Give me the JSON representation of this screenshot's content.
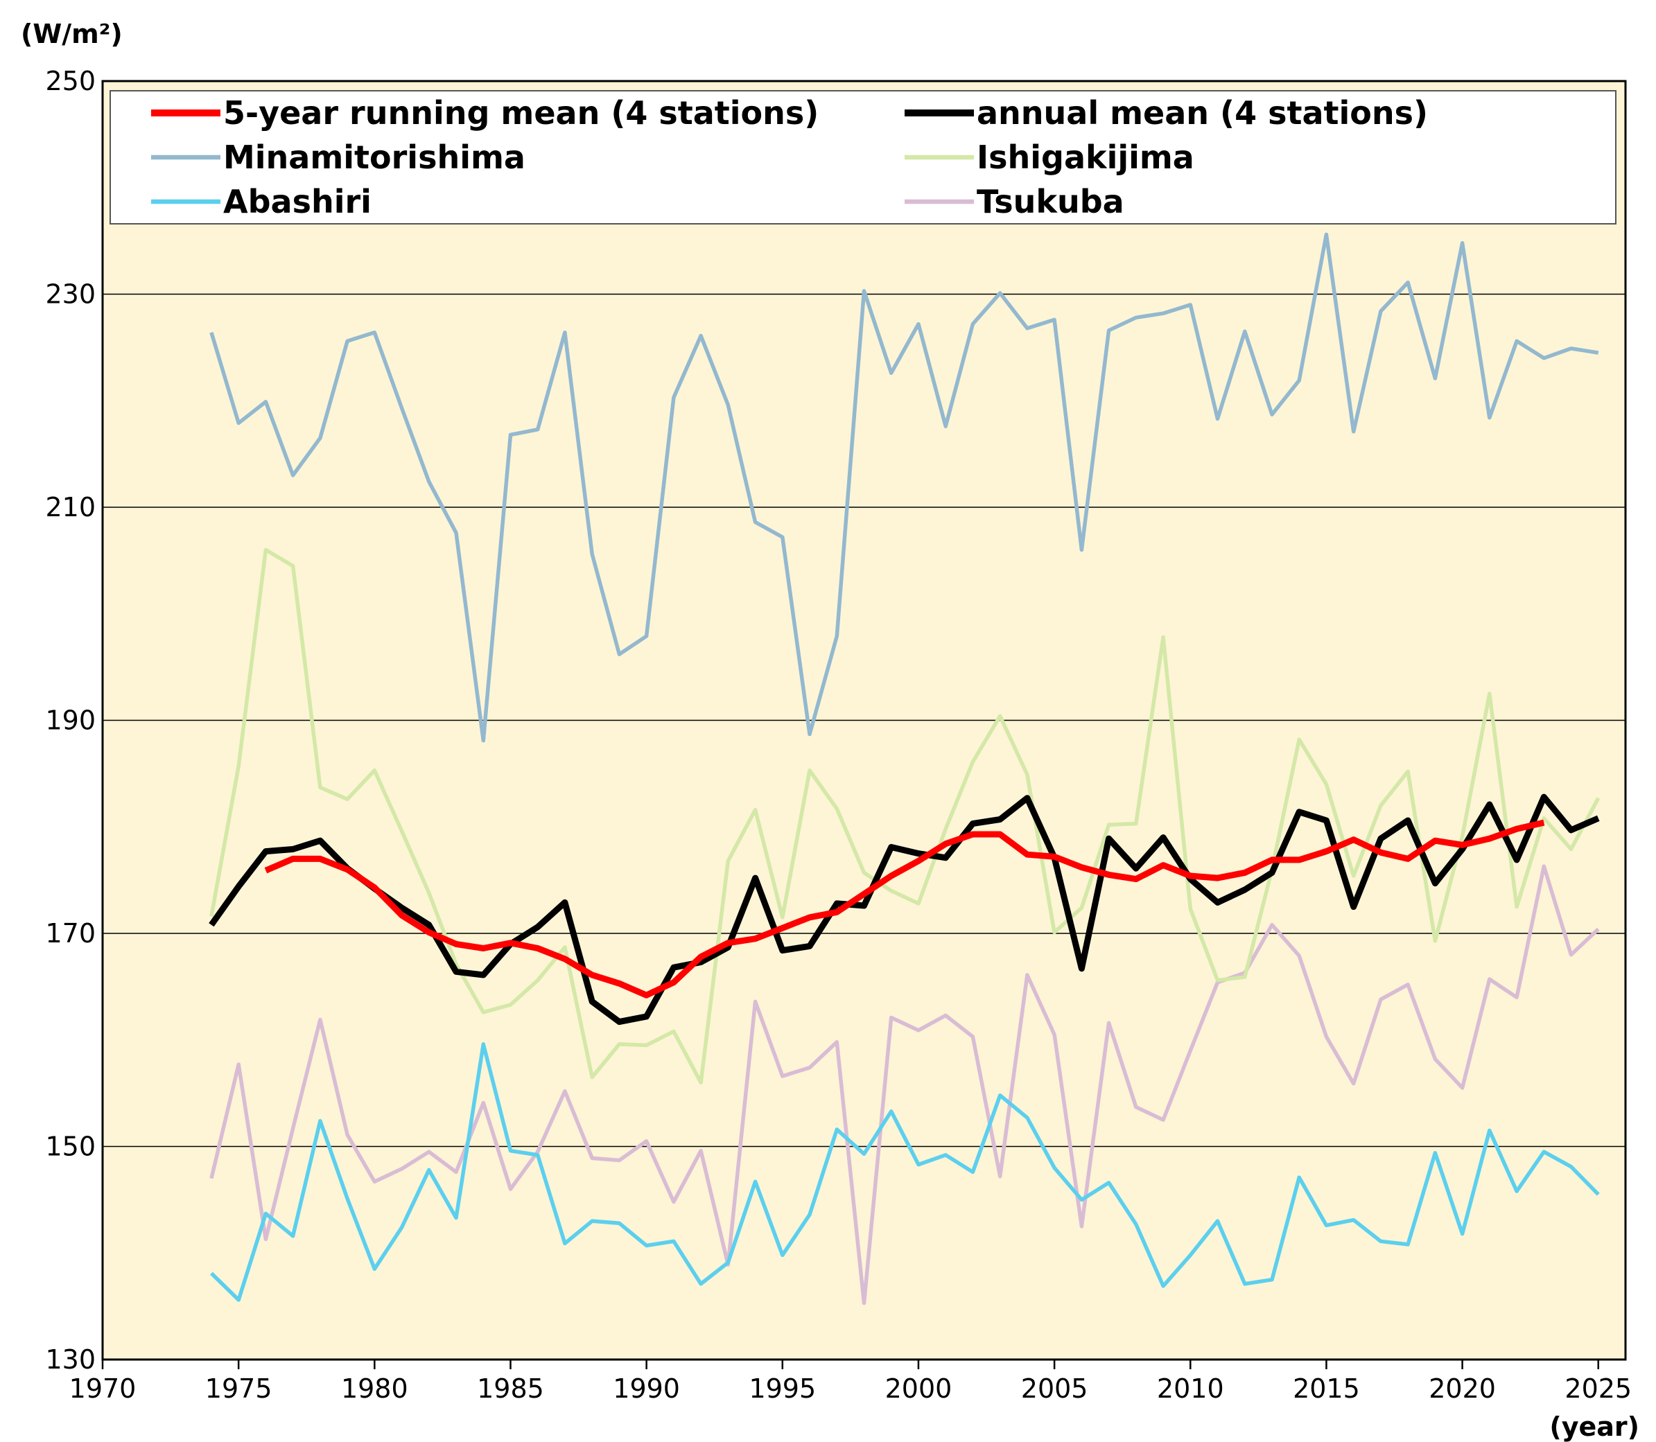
{
  "chart_data": {
    "type": "line",
    "y_label": "(W/m²)",
    "x_label": "(year)",
    "x": [
      1974,
      1975,
      1976,
      1977,
      1978,
      1979,
      1980,
      1981,
      1982,
      1983,
      1984,
      1985,
      1986,
      1987,
      1988,
      1989,
      1990,
      1991,
      1992,
      1993,
      1994,
      1995,
      1996,
      1997,
      1998,
      1999,
      2000,
      2001,
      2002,
      2003,
      2004,
      2005,
      2006,
      2007,
      2008,
      2009,
      2010,
      2011,
      2012,
      2013,
      2014,
      2015,
      2016,
      2017,
      2018,
      2019,
      2020,
      2021,
      2022,
      2023,
      2024,
      2025
    ],
    "xlim": [
      1970,
      2026
    ],
    "xticks": [
      1970,
      1975,
      1980,
      1985,
      1990,
      1995,
      2000,
      2005,
      2010,
      2015,
      2020,
      2025
    ],
    "ylim": [
      130,
      250
    ],
    "yticks": [
      130,
      150,
      170,
      190,
      210,
      230,
      250
    ],
    "grid": true,
    "background": "#fdf5d6",
    "series": [
      {
        "name": "5-year running mean (4 stations)",
        "color": "#ff0000",
        "width": 9,
        "values": [
          null,
          null,
          175.9,
          177.0,
          177.0,
          176.0,
          174.3,
          171.7,
          170.1,
          169.0,
          168.6,
          169.1,
          168.6,
          167.6,
          166.1,
          165.3,
          164.2,
          165.4,
          167.8,
          169.1,
          169.5,
          170.5,
          171.5,
          172.0,
          173.7,
          175.4,
          176.8,
          178.4,
          179.3,
          179.3,
          177.4,
          177.2,
          176.2,
          175.5,
          175.1,
          176.4,
          175.4,
          175.2,
          175.7,
          176.9,
          176.9,
          177.7,
          178.8,
          177.6,
          177.0,
          178.7,
          178.3,
          178.9,
          179.8,
          180.4,
          null,
          null
        ]
      },
      {
        "name": "annual mean (4 stations)",
        "color": "#000000",
        "width": 9,
        "values": [
          170.8,
          174.4,
          177.7,
          177.9,
          178.7,
          176.1,
          174.2,
          172.4,
          170.8,
          166.4,
          166.1,
          169.0,
          170.6,
          172.9,
          163.6,
          161.7,
          162.2,
          166.8,
          167.3,
          168.7,
          175.2,
          168.4,
          168.8,
          172.8,
          172.6,
          178.1,
          177.5,
          177.1,
          180.3,
          180.7,
          182.7,
          177.1,
          166.7,
          178.9,
          176.1,
          179.0,
          175.1,
          172.9,
          174.1,
          175.7,
          181.4,
          180.6,
          172.5,
          178.9,
          180.6,
          174.7,
          177.9,
          182.1,
          176.9,
          182.8,
          179.7,
          180.8
        ]
      },
      {
        "name": "Minamitorishima",
        "color": "#93b8cf",
        "width": 5.5,
        "values": [
          226.4,
          217.9,
          219.9,
          213.0,
          216.5,
          225.6,
          226.4,
          219.3,
          212.4,
          207.6,
          188.1,
          216.8,
          217.3,
          226.4,
          205.6,
          196.2,
          197.9,
          220.3,
          226.1,
          219.6,
          208.6,
          207.2,
          188.7,
          197.9,
          230.3,
          222.6,
          227.2,
          217.6,
          227.2,
          230.1,
          226.8,
          227.6,
          206.0,
          226.6,
          227.8,
          228.2,
          229.0,
          218.3,
          226.5,
          218.7,
          221.9,
          235.6,
          217.1,
          228.4,
          231.1,
          222.1,
          234.8,
          218.4,
          225.6,
          224.0,
          224.9,
          224.5
        ]
      },
      {
        "name": "Ishigakijima",
        "color": "#d4e8a8",
        "width": 5.5,
        "values": [
          171.6,
          185.7,
          206.0,
          204.5,
          183.7,
          182.6,
          185.3,
          179.6,
          173.8,
          167.1,
          162.6,
          163.3,
          165.6,
          168.7,
          156.5,
          159.6,
          159.5,
          160.8,
          156.0,
          176.8,
          181.6,
          171.5,
          185.3,
          181.7,
          175.7,
          174.0,
          172.8,
          179.8,
          186.1,
          190.4,
          184.9,
          170.1,
          172.4,
          180.2,
          180.3,
          197.8,
          172.3,
          165.6,
          165.9,
          176.0,
          188.2,
          184.0,
          175.4,
          182.0,
          185.2,
          169.3,
          179.1,
          192.5,
          172.5,
          180.8,
          177.9,
          182.7
        ]
      },
      {
        "name": "Abashiri",
        "color": "#5ccfee",
        "width": 5.5,
        "values": [
          138.1,
          135.6,
          143.7,
          141.6,
          152.4,
          145.1,
          138.5,
          142.4,
          147.8,
          143.3,
          159.6,
          149.6,
          149.2,
          140.9,
          143.0,
          142.8,
          140.7,
          141.1,
          137.1,
          139.1,
          146.7,
          139.8,
          143.6,
          151.6,
          149.3,
          153.3,
          148.3,
          149.2,
          147.6,
          154.8,
          152.7,
          148.0,
          145.0,
          146.6,
          142.7,
          136.9,
          139.8,
          143.0,
          137.1,
          137.5,
          147.1,
          142.6,
          143.1,
          141.1,
          140.8,
          149.4,
          141.8,
          151.5,
          145.8,
          149.5,
          148.1,
          145.5
        ]
      },
      {
        "name": "Tsukuba",
        "color": "#d9bcd4",
        "width": 5.5,
        "values": [
          147.0,
          157.7,
          141.3,
          151.7,
          161.9,
          151.1,
          146.7,
          147.9,
          149.5,
          147.6,
          154.1,
          146.0,
          149.5,
          155.2,
          148.9,
          148.7,
          150.5,
          144.8,
          149.6,
          138.9,
          163.6,
          156.6,
          157.4,
          159.8,
          135.3,
          162.1,
          160.9,
          162.3,
          160.3,
          147.2,
          166.1,
          160.5,
          142.5,
          161.6,
          153.7,
          152.5,
          159.0,
          165.4,
          166.3,
          170.8,
          167.9,
          160.3,
          155.9,
          163.8,
          165.2,
          158.2,
          155.5,
          165.7,
          164.0,
          176.3,
          168.0,
          170.4
        ]
      }
    ]
  }
}
